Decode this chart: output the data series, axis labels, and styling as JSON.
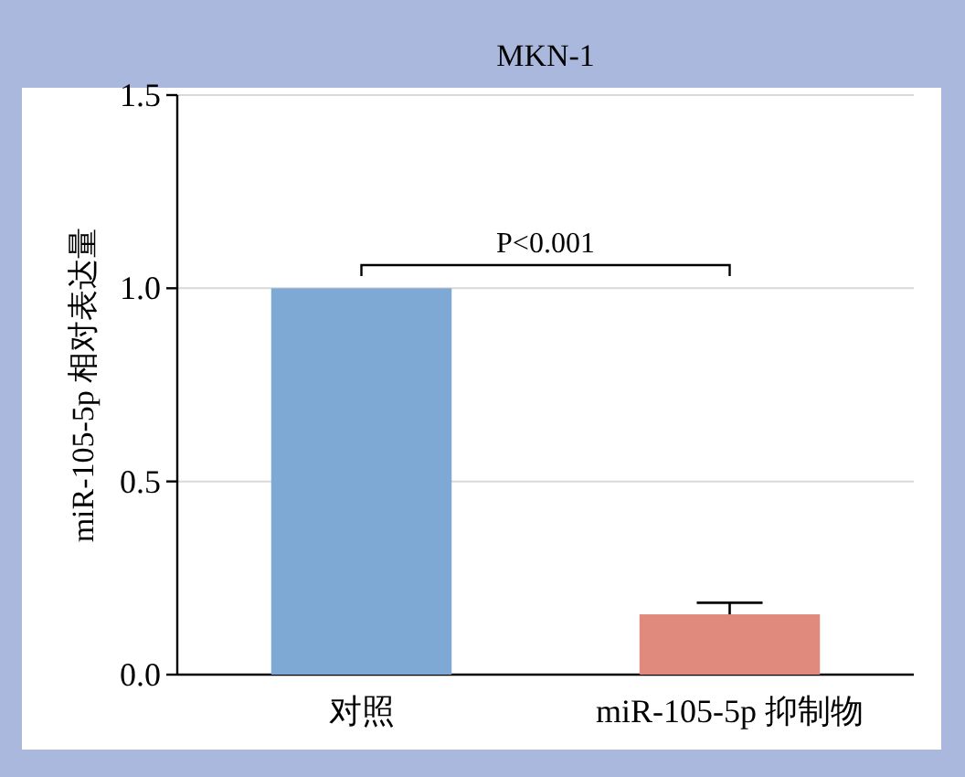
{
  "chart_data": {
    "type": "bar",
    "title": "MKN-1",
    "ylabel": "miR-105-5p 相对表达量",
    "categories": [
      "对照",
      "miR-105-5p 抑制物"
    ],
    "values": [
      1.0,
      0.156
    ],
    "errors": [
      null,
      0.03
    ],
    "colors": [
      "#7ea9d4",
      "#e0897d"
    ],
    "ylim": [
      0,
      1.5
    ],
    "yticks": [
      {
        "value": 0,
        "label": "0.0"
      },
      0.5,
      {
        "value": 1,
        "label": "1.0"
      },
      1.5
    ],
    "grid": "y",
    "annotations": [
      "P<0.001"
    ]
  }
}
